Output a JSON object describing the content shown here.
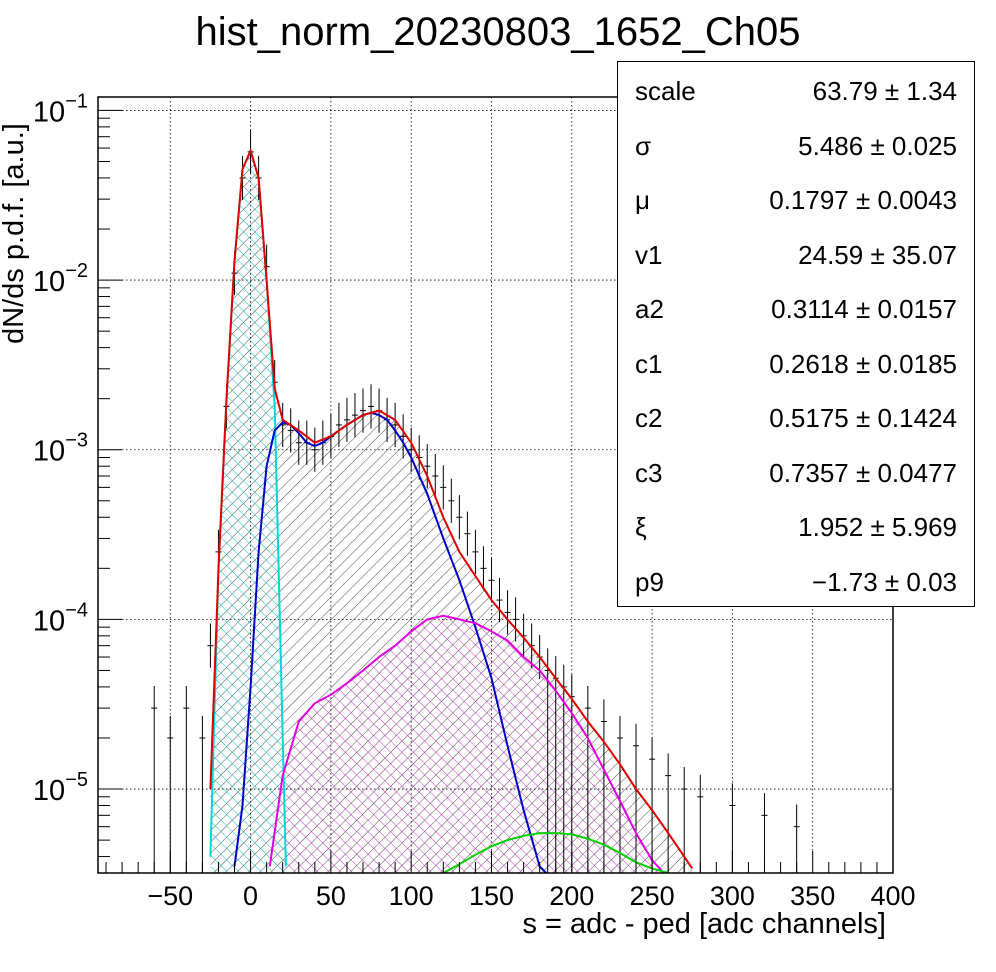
{
  "chart_data": {
    "type": "histogram",
    "title": "hist_norm_20230803_1652_Ch05",
    "xlabel": "s = adc - ped [adc channels]",
    "ylabel": "dN/ds p.d.f. [a.u.]",
    "xlim": [
      -95,
      400
    ],
    "ylim": [
      3.2e-06,
      0.12
    ],
    "yscale": "log",
    "grid": true,
    "x_ticks": [
      -50,
      0,
      50,
      100,
      150,
      200,
      250,
      300,
      350,
      400
    ],
    "y_ticks": [
      {
        "base": "10",
        "exp": "−1",
        "value": 0.1
      },
      {
        "base": "10",
        "exp": "−2",
        "value": 0.01
      },
      {
        "base": "10",
        "exp": "−3",
        "value": 0.001
      },
      {
        "base": "10",
        "exp": "−4",
        "value": 0.0001
      },
      {
        "base": "10",
        "exp": "−5",
        "value": 1e-05
      }
    ],
    "histogram": {
      "x": [
        -60,
        -50,
        -40,
        -30,
        -25,
        -20,
        -15,
        -10,
        -5,
        0,
        5,
        10,
        15,
        20,
        25,
        30,
        35,
        40,
        45,
        50,
        55,
        60,
        65,
        70,
        75,
        80,
        85,
        90,
        95,
        100,
        105,
        110,
        115,
        120,
        125,
        130,
        135,
        140,
        145,
        150,
        155,
        160,
        165,
        170,
        175,
        180,
        185,
        190,
        195,
        200,
        210,
        220,
        230,
        240,
        250,
        260,
        270,
        280,
        300,
        320,
        340
      ],
      "y": [
        3e-05,
        2e-05,
        3e-05,
        2e-05,
        7e-05,
        0.00025,
        0.0018,
        0.011,
        0.04,
        0.057,
        0.04,
        0.012,
        0.0025,
        0.0014,
        0.0013,
        0.0011,
        0.0011,
        0.001,
        0.0011,
        0.0012,
        0.0014,
        0.0015,
        0.0016,
        0.0017,
        0.0018,
        0.0017,
        0.0015,
        0.0014,
        0.0012,
        0.001,
        0.0009,
        0.0008,
        0.0007,
        0.0006,
        0.0005,
        0.0004,
        0.00032,
        0.00025,
        0.0002,
        0.00017,
        0.00013,
        0.00011,
        0.0001,
        8e-05,
        7e-05,
        6e-05,
        5e-05,
        4.5e-05,
        4e-05,
        3.5e-05,
        3e-05,
        2.5e-05,
        2e-05,
        1.8e-05,
        1.5e-05,
        1.2e-05,
        1e-05,
        9e-06,
        8e-06,
        7e-06,
        6e-06
      ]
    },
    "series": [
      {
        "color": "#e00000",
        "x": [
          -25,
          -20,
          -15,
          -10,
          -5,
          0,
          5,
          10,
          15,
          20,
          30,
          40,
          50,
          60,
          70,
          80,
          90,
          100,
          110,
          120,
          130,
          140,
          150,
          160,
          170,
          180,
          190,
          200,
          210,
          220,
          230,
          240,
          250,
          260,
          270,
          275
        ],
        "y": [
          1e-05,
          0.0002,
          0.002,
          0.013,
          0.045,
          0.058,
          0.04,
          0.01,
          0.0023,
          0.0015,
          0.0013,
          0.0011,
          0.0012,
          0.0014,
          0.0016,
          0.0017,
          0.0015,
          0.0011,
          0.0007,
          0.0004,
          0.00025,
          0.00018,
          0.00013,
          0.0001,
          7.8e-05,
          6e-05,
          4.5e-05,
          3.4e-05,
          2.5e-05,
          1.9e-05,
          1.4e-05,
          1e-05,
          7.5e-06,
          5.5e-06,
          4e-06,
          3.4e-06
        ]
      },
      {
        "color": "#00d8d8",
        "x": [
          -25,
          -20,
          -15,
          -10,
          -5,
          0,
          5,
          10,
          15,
          20,
          22
        ],
        "y": [
          4e-06,
          0.0002,
          0.002,
          0.013,
          0.045,
          0.058,
          0.04,
          0.01,
          0.0018,
          2e-05,
          3.5e-06
        ]
      },
      {
        "color": "#0000c8",
        "x": [
          -10,
          -5,
          0,
          5,
          10,
          15,
          20,
          25,
          30,
          35,
          40,
          45,
          50,
          55,
          60,
          65,
          70,
          75,
          80,
          85,
          90,
          95,
          100,
          110,
          120,
          130,
          140,
          150,
          160,
          170,
          180,
          184
        ],
        "y": [
          3.5e-06,
          8e-06,
          4e-05,
          0.00025,
          0.0008,
          0.0013,
          0.00145,
          0.0014,
          0.00125,
          0.0011,
          0.00105,
          0.0011,
          0.0012,
          0.0013,
          0.0014,
          0.0015,
          0.0016,
          0.00165,
          0.0016,
          0.0015,
          0.0013,
          0.0011,
          0.0009,
          0.00055,
          0.0003,
          0.00017,
          9e-05,
          4.5e-05,
          1.8e-05,
          7.5e-06,
          3.5e-06,
          3.2e-06
        ]
      },
      {
        "color": "#e000e0",
        "x": [
          12,
          20,
          30,
          40,
          50,
          60,
          70,
          80,
          90,
          100,
          110,
          120,
          130,
          140,
          150,
          160,
          170,
          180,
          190,
          200,
          210,
          220,
          230,
          240,
          250,
          256
        ],
        "y": [
          3.5e-06,
          1.2e-05,
          2.5e-05,
          3.2e-05,
          3.6e-05,
          4.2e-05,
          5e-05,
          6e-05,
          7e-05,
          8.5e-05,
          0.0001,
          0.000105,
          0.0001,
          9.5e-05,
          8.5e-05,
          7.5e-05,
          6e-05,
          5e-05,
          3.8e-05,
          2.8e-05,
          2e-05,
          1.3e-05,
          8.5e-06,
          5.5e-06,
          3.8e-06,
          3.3e-06
        ]
      },
      {
        "color": "#00d000",
        "x": [
          120,
          130,
          140,
          150,
          160,
          170,
          180,
          190,
          200,
          210,
          220,
          230,
          240,
          250,
          260
        ],
        "y": [
          3.2e-06,
          3.6e-06,
          4.1e-06,
          4.6e-06,
          5e-06,
          5.3e-06,
          5.5e-06,
          5.5e-06,
          5.4e-06,
          5.1e-06,
          4.7e-06,
          4.2e-06,
          3.7e-06,
          3.4e-06,
          3.2e-06
        ]
      }
    ],
    "stats": [
      {
        "name": "scale",
        "value": "63.79 ± 1.34"
      },
      {
        "name": "σ",
        "value": "5.486 ± 0.025"
      },
      {
        "name": "μ",
        "value": "0.1797 ± 0.0043"
      },
      {
        "name": "v1",
        "value": "24.59 ± 35.07"
      },
      {
        "name": "a2",
        "value": "0.3114 ± 0.0157"
      },
      {
        "name": "c1",
        "value": "0.2618 ± 0.0185"
      },
      {
        "name": "c2",
        "value": "0.5175 ± 0.1424"
      },
      {
        "name": "c3",
        "value": "0.7357 ± 0.0477"
      },
      {
        "name": "ξ",
        "value": "1.952 ± 5.969"
      },
      {
        "name": "p9",
        "value": "−1.73 ± 0.03"
      }
    ]
  }
}
